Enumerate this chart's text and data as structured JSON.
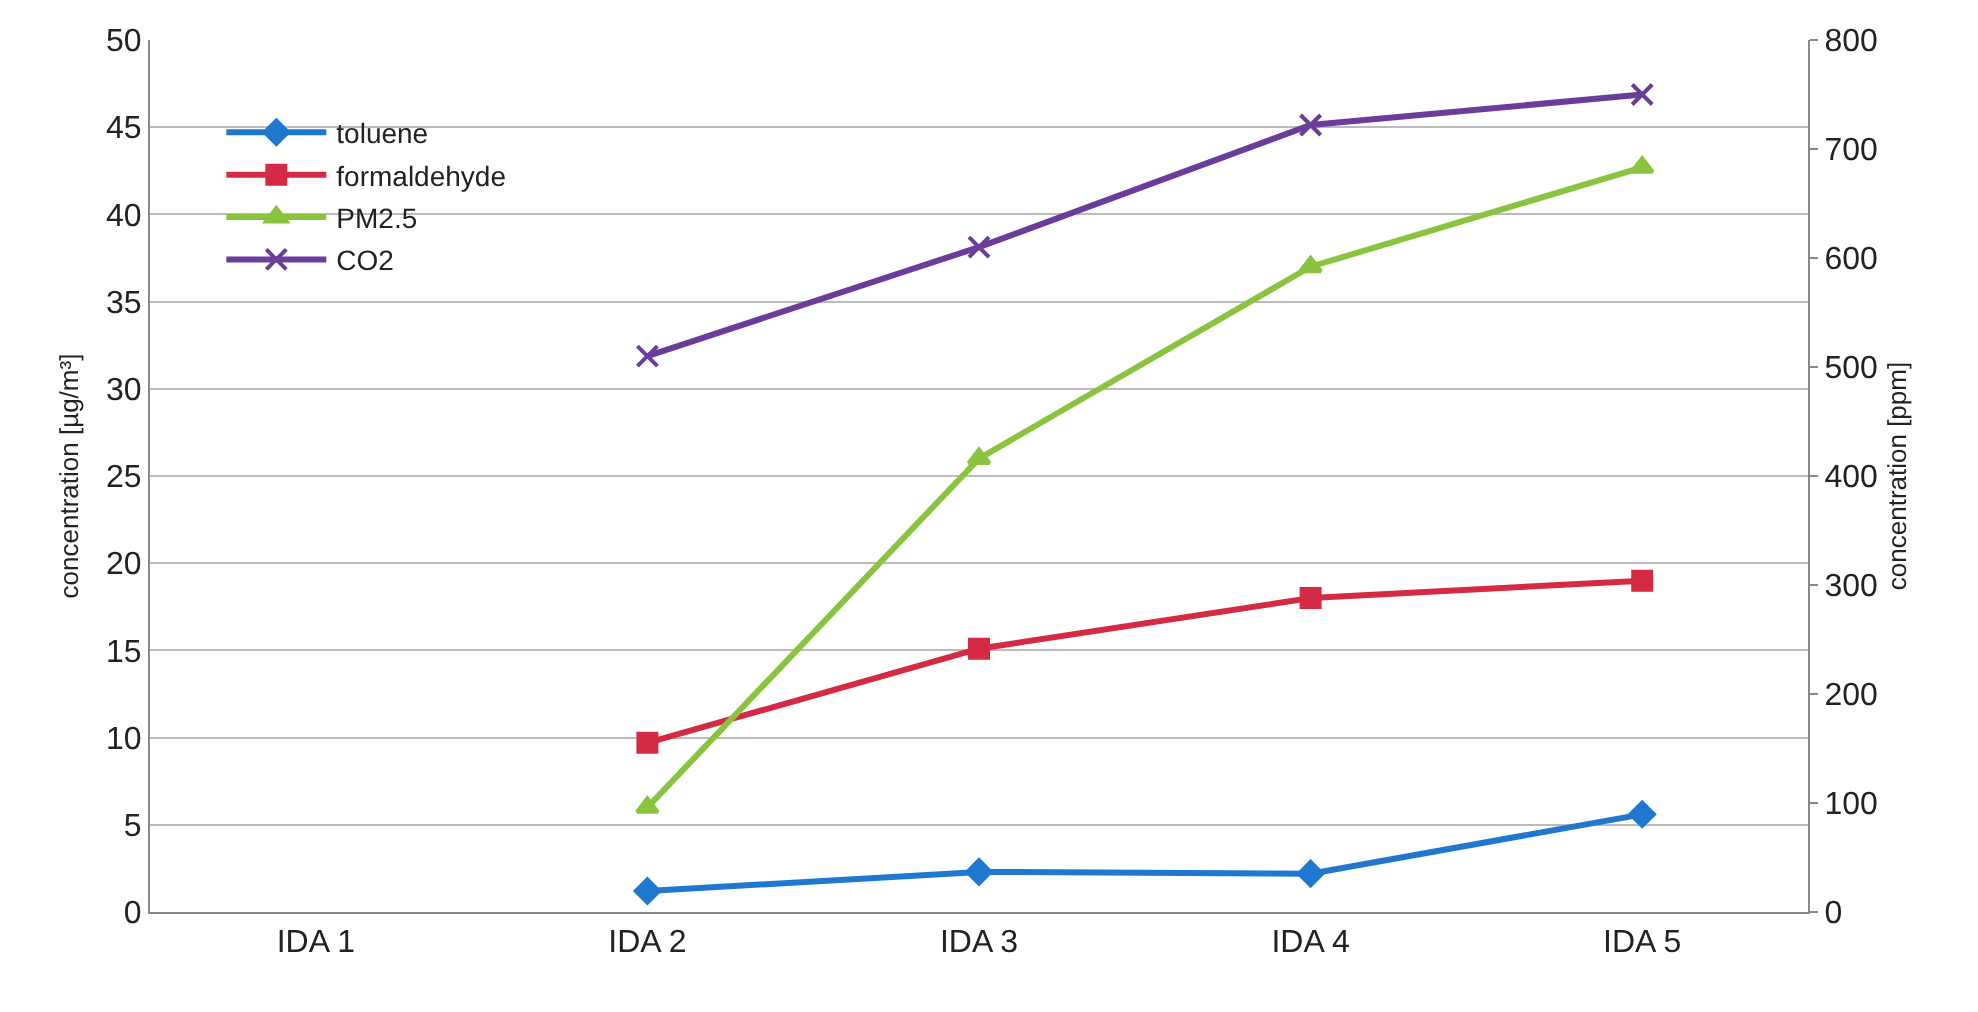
{
  "chart_data": {
    "type": "line",
    "categories": [
      "IDA 1",
      "IDA 2",
      "IDA 3",
      "IDA 4",
      "IDA 5"
    ],
    "ylabel": "concentration [µg/m³]",
    "y2label": "concentration [ppm]",
    "ylim": [
      0,
      50
    ],
    "yticks": [
      0,
      5,
      10,
      15,
      20,
      25,
      30,
      35,
      40,
      45,
      50
    ],
    "y2lim": [
      0,
      800
    ],
    "y2ticks": [
      0,
      100,
      200,
      300,
      400,
      500,
      600,
      700,
      800
    ],
    "grid": "y",
    "legend": "top left",
    "line_style": "solid",
    "series": [
      {
        "name": "toluene",
        "color": "#1f77d0",
        "marker": "diamond",
        "values": [
          null,
          1.2,
          2.3,
          2.2,
          5.6
        ]
      },
      {
        "name": "formaldehyde",
        "color": "#d42a44",
        "marker": "square",
        "values": [
          null,
          9.7,
          15.1,
          18,
          19
        ]
      },
      {
        "name": "PM2.5",
        "color": "#8ac43f",
        "marker": "triangle",
        "values": [
          null,
          6,
          26,
          37,
          42.7
        ]
      },
      {
        "name": "CO2",
        "color": "#6a3d9a",
        "marker": "cross",
        "axis": "y2",
        "values": [
          null,
          510,
          610,
          722,
          750
        ]
      }
    ]
  }
}
